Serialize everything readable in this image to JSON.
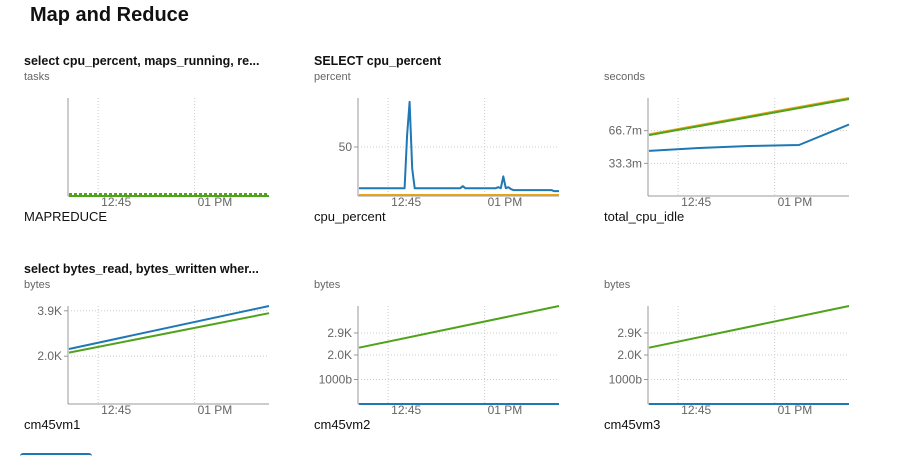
{
  "page": {
    "title": "Map and Reduce"
  },
  "colors": {
    "blue": "#1f78b4",
    "green": "#4ea31a",
    "orange": "#e8a21a",
    "axis": "#999999",
    "grid": "#cccccc"
  },
  "chart_data": [
    {
      "type": "line",
      "title": "select cpu_percent, maps_running, re...",
      "unit": "tasks",
      "x_ticks": [
        "12:45",
        "01 PM"
      ],
      "y_ticks": [],
      "ylim": [
        0,
        1
      ],
      "legend": "MAPREDUCE",
      "series": [
        {
          "color": "green",
          "dashed": true,
          "values": [
            0.02,
            0.02
          ]
        },
        {
          "color": "green",
          "dashed": false,
          "values": [
            0.0,
            0.0
          ]
        }
      ]
    },
    {
      "type": "line",
      "title": "SELECT cpu_percent",
      "unit": "percent",
      "x_ticks": [
        "12:45",
        "01 PM"
      ],
      "y_ticks": [
        {
          "label": "50",
          "v": 50
        }
      ],
      "ylim": [
        0,
        100
      ],
      "legend": "cpu_percent",
      "series": [
        {
          "color": "blue",
          "dashed": false,
          "values": [
            8,
            8,
            8,
            8,
            8,
            8,
            8,
            8,
            8,
            8,
            8,
            8,
            8,
            8,
            8,
            8,
            8,
            8,
            8,
            62,
            96,
            28,
            8,
            8,
            8,
            8,
            8,
            8,
            8,
            8,
            8,
            8,
            8,
            8,
            8,
            8,
            8,
            8,
            8,
            8,
            8,
            10,
            8,
            8,
            8,
            8,
            8,
            8,
            8,
            8,
            8,
            8,
            8,
            8,
            8,
            9,
            8,
            20,
            8,
            9,
            7,
            6,
            6,
            6,
            6,
            6,
            6,
            6,
            6,
            6,
            6,
            6,
            6,
            6,
            6,
            6,
            6,
            5,
            5,
            5
          ]
        },
        {
          "color": "orange",
          "dashed": false,
          "values": [
            1,
            1
          ]
        }
      ]
    },
    {
      "type": "line",
      "title": "",
      "unit": "seconds",
      "x_ticks": [
        "12:45",
        "01 PM"
      ],
      "y_ticks": [
        {
          "label": "66.7m",
          "v": 66.7
        },
        {
          "label": "33.3m",
          "v": 33.3
        }
      ],
      "ylim": [
        0,
        100
      ],
      "legend": "total_cpu_idle",
      "series": [
        {
          "color": "orange",
          "dashed": false,
          "values": [
            63,
            100
          ]
        },
        {
          "color": "green",
          "dashed": false,
          "values": [
            62,
            99
          ]
        },
        {
          "color": "blue",
          "dashed": false,
          "values": [
            46,
            49,
            51,
            52,
            73
          ]
        }
      ]
    },
    {
      "type": "line",
      "title": "select bytes_read, bytes_written wher...",
      "unit": "bytes",
      "x_ticks": [
        "12:45",
        "01 PM"
      ],
      "y_ticks": [
        {
          "label": "3.9K",
          "v": 3.9
        },
        {
          "label": "2.0K",
          "v": 2.0
        }
      ],
      "ylim": [
        0,
        4.1
      ],
      "legend": "cm45vm1",
      "series": [
        {
          "color": "blue",
          "dashed": false,
          "values": [
            2.3,
            4.1
          ]
        },
        {
          "color": "green",
          "dashed": false,
          "values": [
            2.15,
            3.8
          ]
        }
      ]
    },
    {
      "type": "line",
      "title": "",
      "unit": "bytes",
      "x_ticks": [
        "12:45",
        "01 PM"
      ],
      "y_ticks": [
        {
          "label": "2.9K",
          "v": 2.9
        },
        {
          "label": "2.0K",
          "v": 2.0
        },
        {
          "label": "1000b",
          "v": 1.0
        }
      ],
      "ylim": [
        0,
        4.0
      ],
      "legend": "cm45vm2",
      "series": [
        {
          "color": "green",
          "dashed": false,
          "values": [
            2.3,
            4.0
          ]
        },
        {
          "color": "blue",
          "dashed": false,
          "values": [
            0.0,
            0.0
          ]
        }
      ]
    },
    {
      "type": "line",
      "title": "",
      "unit": "bytes",
      "x_ticks": [
        "12:45",
        "01 PM"
      ],
      "y_ticks": [
        {
          "label": "2.9K",
          "v": 2.9
        },
        {
          "label": "2.0K",
          "v": 2.0
        },
        {
          "label": "1000b",
          "v": 1.0
        }
      ],
      "ylim": [
        0,
        4.0
      ],
      "legend": "cm45vm3",
      "series": [
        {
          "color": "green",
          "dashed": false,
          "values": [
            2.3,
            4.0
          ]
        },
        {
          "color": "blue",
          "dashed": false,
          "values": [
            0.0,
            0.0
          ]
        }
      ]
    }
  ]
}
